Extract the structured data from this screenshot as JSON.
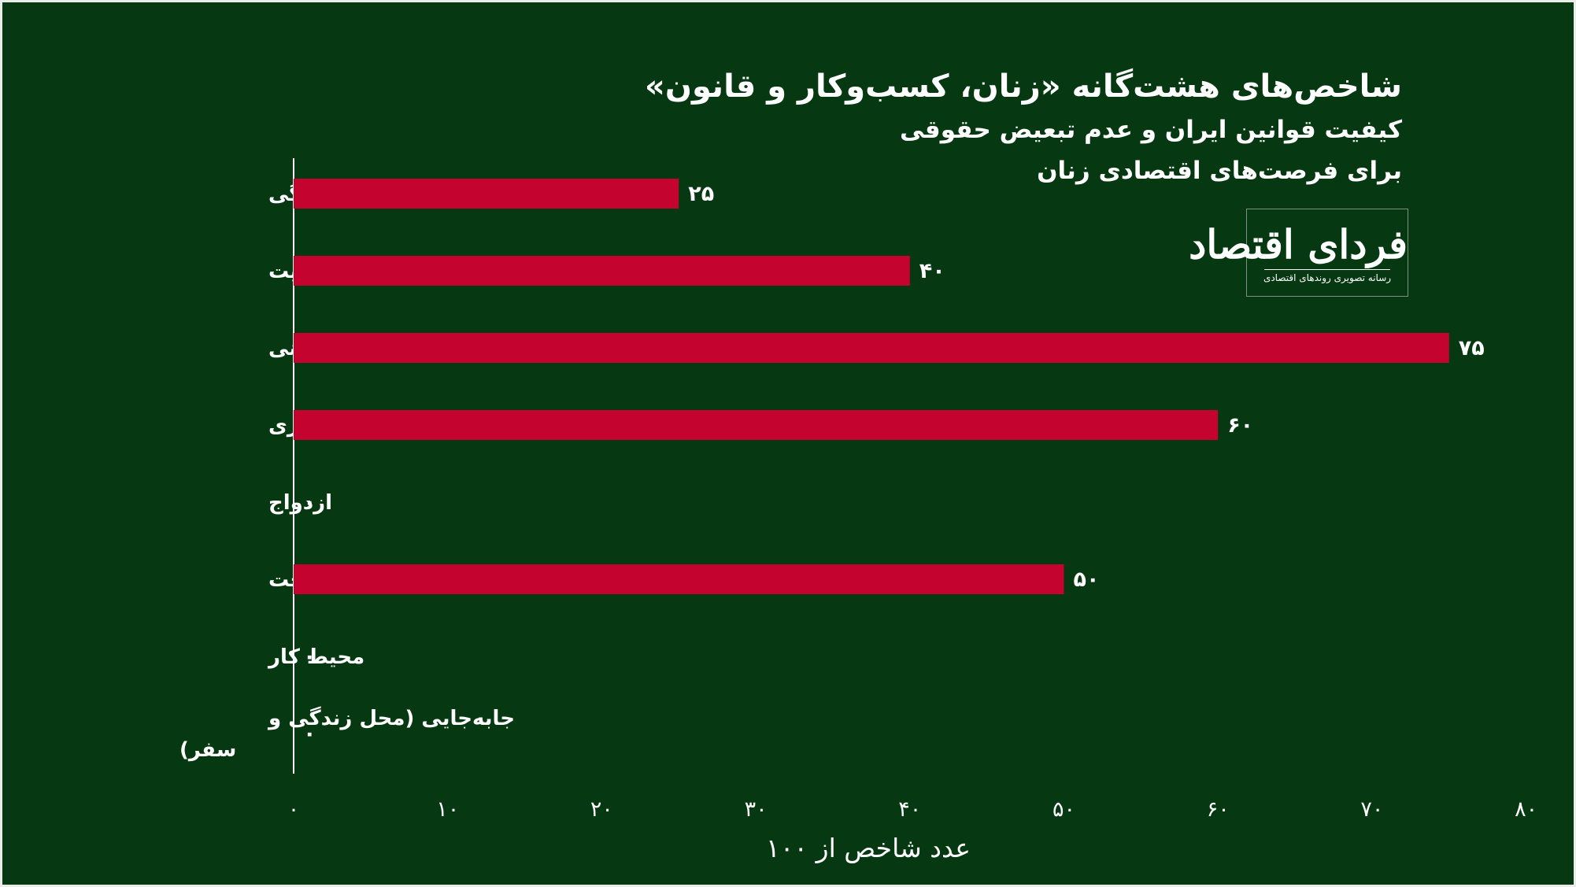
{
  "title": "شاخص‌های هشت‌گانه «زنان، کسب‌وکار و قانون»",
  "subtitle_line1": "کیفیت قوانین ایران و عدم تبعیض حقوقی",
  "subtitle_line2": "برای فرصت‌های اقتصادی زنان",
  "logo": {
    "name": "فردای اقتصاد",
    "tagline": "رسانه تصویری روندهای اقتصادی"
  },
  "colors": {
    "background": "#063812",
    "bar": "#c4042f",
    "text": "#ffffff",
    "axis": "#ffffff"
  },
  "chart_data": {
    "type": "bar",
    "orientation": "horizontal",
    "categories": [
      [
        "بازنشستگی"
      ],
      [
        "دارایی (ارث و مالکیت"
      ],
      [
        "کارآفرینی"
      ],
      [
        "والدگری"
      ],
      [
        "ازدواج"
      ],
      [
        "پرداخت"
      ],
      [
        "محیط کار"
      ],
      [
        "جابه‌جایی (محل زندگی و",
        "سفر)"
      ]
    ],
    "values": [
      25,
      40,
      75,
      60,
      0,
      50,
      0,
      0
    ],
    "value_labels": [
      "۲۵",
      "۴۰",
      "۷۵",
      "۶۰",
      "۰",
      "۵۰",
      "۰",
      "۰"
    ],
    "xlim": [
      0,
      80
    ],
    "xticks": [
      0,
      10,
      20,
      30,
      40,
      50,
      60,
      70,
      80
    ],
    "xtick_labels": [
      "۰",
      "۱۰",
      "۲۰",
      "۳۰",
      "۴۰",
      "۵۰",
      "۶۰",
      "۷۰",
      "۸۰"
    ],
    "xlabel": "عدد شاخص از ۱۰۰",
    "ylabel": "",
    "grid": false,
    "legend": "none"
  }
}
